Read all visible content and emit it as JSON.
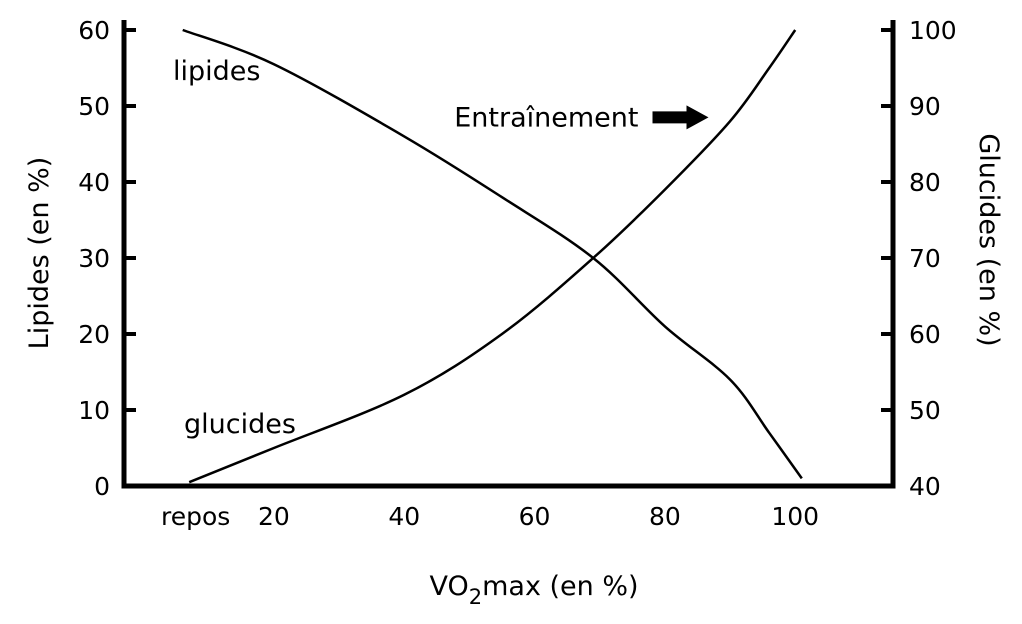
{
  "chart_data": {
    "type": "line",
    "title": "",
    "xlabel": {
      "main": "VO",
      "sub": "2",
      "rest": "max (en %)"
    },
    "ylabel_left": "Lipides (en %)",
    "ylabel_right": "Glucides (en %)",
    "x_ticks": [
      "repos",
      "20",
      "40",
      "60",
      "80",
      "100"
    ],
    "x_tick_values": [
      8,
      20,
      40,
      60,
      80,
      100
    ],
    "xlim": [
      -3,
      115
    ],
    "y_left_ticks": [
      "0",
      "10",
      "20",
      "30",
      "40",
      "50",
      "60"
    ],
    "y_left_tick_values": [
      0,
      10,
      20,
      30,
      40,
      50,
      60
    ],
    "ylim_left": [
      0,
      60
    ],
    "y_right_ticks": [
      "40",
      "50",
      "60",
      "70",
      "80",
      "90",
      "100"
    ],
    "y_right_tick_values": [
      40,
      50,
      60,
      70,
      80,
      90,
      100
    ],
    "ylim_right": [
      40,
      100
    ],
    "grid": false,
    "series": [
      {
        "name": "lipides",
        "axis": "left",
        "x": [
          6,
          20,
          40,
          55,
          69,
          80,
          90,
          96,
          101
        ],
        "values": [
          60,
          55.5,
          46,
          38,
          30,
          21,
          14,
          7,
          1
        ]
      },
      {
        "name": "glucides",
        "axis": "right",
        "x": [
          7,
          20,
          40,
          55,
          69,
          80,
          90,
          96,
          100
        ],
        "values": [
          40.5,
          45,
          52,
          60,
          70,
          79,
          88,
          95,
          100
        ]
      }
    ],
    "annotation": {
      "text": "Entraînement",
      "arrow_x": 87,
      "arrow_y_left": 48.5
    }
  }
}
